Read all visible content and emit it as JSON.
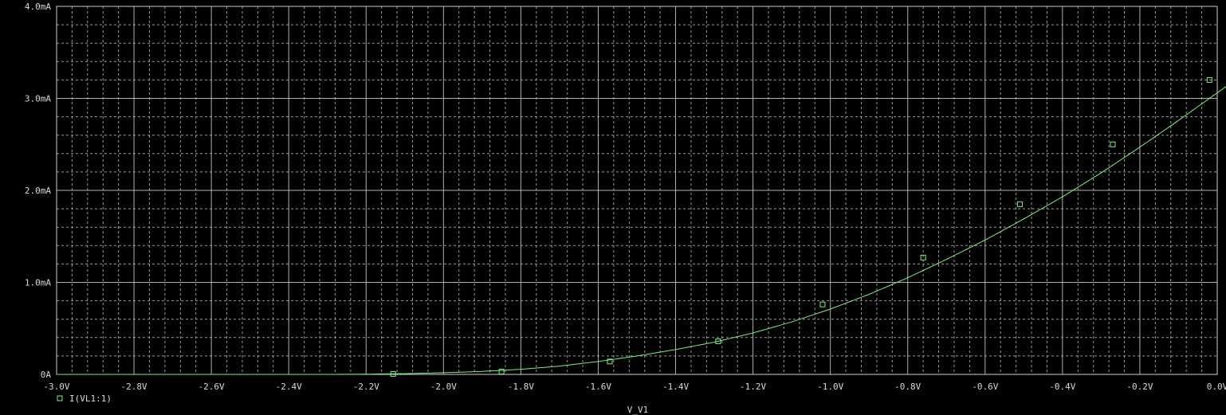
{
  "chart_data": {
    "type": "line",
    "title": "",
    "xlabel": "V_V1",
    "ylabel": "",
    "xlim": [
      -3.0,
      0.0
    ],
    "ylim": [
      0,
      4.0
    ],
    "x_unit": "V",
    "y_unit": "mA",
    "x_ticks": [
      "-3.0V",
      "-2.8V",
      "-2.6V",
      "-2.4V",
      "-2.2V",
      "-2.0V",
      "-1.8V",
      "-1.6V",
      "-1.4V",
      "-1.2V",
      "-1.0V",
      "-0.8V",
      "-0.6V",
      "-0.4V",
      "-0.2V",
      "0.0V"
    ],
    "x_tick_values": [
      -3.0,
      -2.8,
      -2.6,
      -2.4,
      -2.2,
      -2.0,
      -1.8,
      -1.6,
      -1.4,
      -1.2,
      -1.0,
      -0.8,
      -0.6,
      -0.4,
      -0.2,
      0.0
    ],
    "y_ticks": [
      "0A",
      "1.0mA",
      "2.0mA",
      "3.0mA",
      "4.0mA"
    ],
    "y_tick_values": [
      0,
      1.0,
      2.0,
      3.0,
      4.0
    ],
    "grid": true,
    "legend_position": "bottom-left",
    "series": [
      {
        "name": "I(VL1:1)",
        "color": "#7cf07c",
        "marker": "square",
        "x": [
          -3.0,
          -2.8,
          -2.6,
          -2.4,
          -2.3,
          -2.2,
          -2.1,
          -2.0,
          -1.9,
          -1.8,
          -1.7,
          -1.6,
          -1.5,
          -1.4,
          -1.3,
          -1.2,
          -1.1,
          -1.0,
          -0.9,
          -0.8,
          -0.7,
          -0.6,
          -0.5,
          -0.4,
          -0.3,
          -0.2,
          -0.1,
          -0.05
        ],
        "y": [
          0.0,
          0.0,
          0.0,
          0.0,
          0.0,
          0.002,
          0.008,
          0.018,
          0.032,
          0.055,
          0.09,
          0.14,
          0.2,
          0.27,
          0.35,
          0.45,
          0.57,
          0.71,
          0.87,
          1.05,
          1.25,
          1.46,
          1.69,
          1.93,
          2.19,
          2.47,
          2.76,
          2.91
        ]
      }
    ],
    "markers": {
      "x": [
        -2.13,
        -1.85,
        -1.57,
        -1.29,
        -1.02,
        -0.76,
        -0.51,
        -0.27,
        -0.02
      ],
      "y": [
        0.005,
        0.03,
        0.14,
        0.36,
        0.76,
        1.27,
        1.85,
        2.5,
        3.2
      ]
    }
  },
  "legend": {
    "label": "I(VL1:1)"
  },
  "colors": {
    "background": "#000000",
    "grid_major": "#cfcfcf",
    "grid_minor": "#9a9a9a",
    "trace": "#7cf07c",
    "text": "#d8d8d8"
  }
}
